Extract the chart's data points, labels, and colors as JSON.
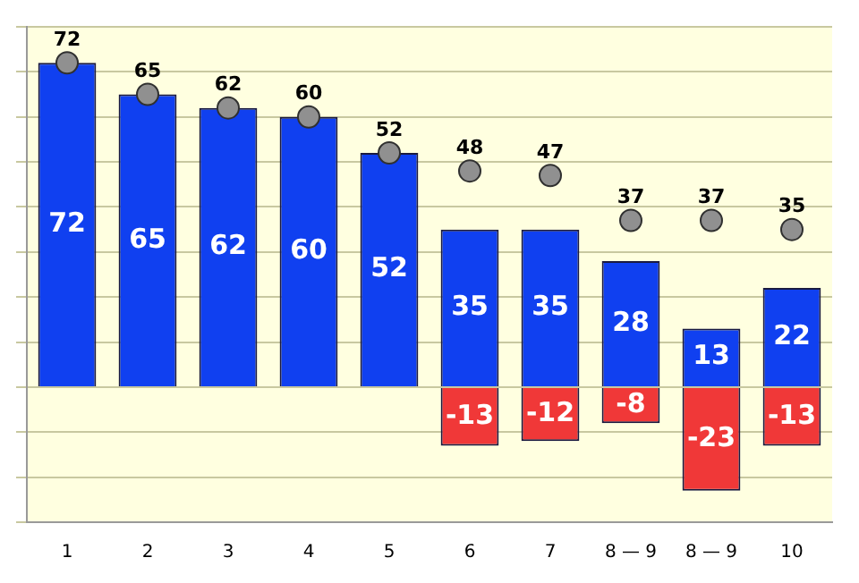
{
  "chart_data": {
    "type": "bar",
    "categories": [
      "1",
      "2",
      "3",
      "4",
      "5",
      "6",
      "7",
      "8 — 9",
      "8 — 9",
      "10"
    ],
    "stacked": true,
    "series": [
      {
        "color": "#1040f0",
        "values": [
          72,
          65,
          62,
          60,
          52,
          35,
          35,
          28,
          13,
          22
        ]
      },
      {
        "color": "#f03838",
        "values": [
          null,
          null,
          null,
          null,
          null,
          -13,
          -12,
          -8,
          -23,
          -13
        ]
      },
      {
        "type": "scatter",
        "color": "#909090",
        "values": [
          72,
          65,
          62,
          60,
          52,
          48,
          47,
          37,
          37,
          35
        ]
      }
    ],
    "ylim": [
      -30,
      80
    ],
    "yticks": [
      {
        "value": -30,
        "label": null
      },
      {
        "value": -20,
        "label": null
      },
      {
        "value": -10,
        "label": null
      },
      {
        "value": 0,
        "label": null
      },
      {
        "value": 10,
        "label": null
      },
      {
        "value": 20,
        "label": null
      },
      {
        "value": 30,
        "label": null
      },
      {
        "value": 40,
        "label": null
      },
      {
        "value": 50,
        "label": null
      },
      {
        "value": 60,
        "label": null
      },
      {
        "value": 70,
        "label": null
      },
      {
        "value": 80,
        "label": null
      }
    ],
    "grid": "y",
    "tick_labels": "x",
    "marker": "circle",
    "data_labels": true
  }
}
